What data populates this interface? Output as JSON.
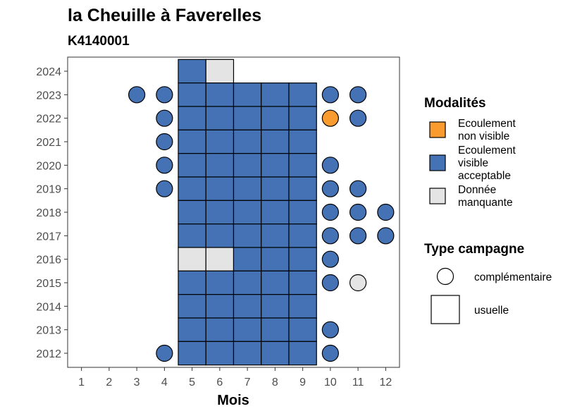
{
  "chart_data": {
    "type": "heatmap",
    "title": "la Cheuille à Faverelles",
    "subtitle": "K4140001",
    "xlabel": "Mois",
    "ylabel": "",
    "x_ticks": [
      1,
      2,
      3,
      4,
      5,
      6,
      7,
      8,
      9,
      10,
      11,
      12
    ],
    "y_ticks": [
      2012,
      2013,
      2014,
      2015,
      2016,
      2017,
      2018,
      2019,
      2020,
      2021,
      2022,
      2023,
      2024
    ],
    "xlim": [
      0.5,
      12.5
    ],
    "ylim": [
      2011.4,
      2024.6
    ],
    "grid": false,
    "legend_placement": "right",
    "modalites_legend": {
      "title": "Modalités",
      "items": [
        {
          "key": "ENV",
          "lines": [
            "Ecoulement",
            "non visible"
          ],
          "color": "#F99B2F"
        },
        {
          "key": "EVA",
          "lines": [
            "Ecoulement",
            "visible",
            "acceptable"
          ],
          "color": "#4472B4"
        },
        {
          "key": "NA",
          "lines": [
            "Donnée",
            "manquante"
          ],
          "color": "#E4E4E4"
        }
      ]
    },
    "campagne_legend": {
      "title": "Type campagne",
      "items": [
        {
          "key": "comp",
          "label": "complémentaire",
          "shape": "circle"
        },
        {
          "key": "usu",
          "label": "usuelle",
          "shape": "square"
        }
      ]
    },
    "usuelle": [
      {
        "year": 2024,
        "months": [
          5
        ],
        "modalite": "EVA"
      },
      {
        "year": 2024,
        "months": [
          6
        ],
        "modalite": "NA"
      },
      {
        "year": 2023,
        "months": [
          5,
          6,
          7,
          8,
          9
        ],
        "modalite": "EVA"
      },
      {
        "year": 2022,
        "months": [
          5,
          6,
          7,
          8,
          9
        ],
        "modalite": "EVA"
      },
      {
        "year": 2021,
        "months": [
          5,
          6,
          7,
          8,
          9
        ],
        "modalite": "EVA"
      },
      {
        "year": 2020,
        "months": [
          5,
          6,
          7,
          8,
          9
        ],
        "modalite": "EVA"
      },
      {
        "year": 2019,
        "months": [
          5,
          6,
          7,
          8,
          9
        ],
        "modalite": "EVA"
      },
      {
        "year": 2018,
        "months": [
          5,
          6,
          7,
          8,
          9
        ],
        "modalite": "EVA"
      },
      {
        "year": 2017,
        "months": [
          5,
          6,
          7,
          8,
          9
        ],
        "modalite": "EVA"
      },
      {
        "year": 2016,
        "months": [
          5,
          6
        ],
        "modalite": "NA"
      },
      {
        "year": 2016,
        "months": [
          7,
          8,
          9
        ],
        "modalite": "EVA"
      },
      {
        "year": 2015,
        "months": [
          5,
          6,
          7,
          8,
          9
        ],
        "modalite": "EVA"
      },
      {
        "year": 2014,
        "months": [
          5,
          6,
          7,
          8,
          9
        ],
        "modalite": "EVA"
      },
      {
        "year": 2013,
        "months": [
          5,
          6,
          7,
          8,
          9
        ],
        "modalite": "EVA"
      },
      {
        "year": 2012,
        "months": [
          5,
          6,
          7,
          8,
          9
        ],
        "modalite": "EVA"
      }
    ],
    "complementaire": [
      {
        "year": 2023,
        "months": [
          3,
          4,
          10,
          11
        ],
        "modalite": "EVA"
      },
      {
        "year": 2022,
        "months": [
          4,
          11
        ],
        "modalite": "EVA"
      },
      {
        "year": 2022,
        "months": [
          10
        ],
        "modalite": "ENV"
      },
      {
        "year": 2021,
        "months": [
          4
        ],
        "modalite": "EVA"
      },
      {
        "year": 2020,
        "months": [
          4,
          10
        ],
        "modalite": "EVA"
      },
      {
        "year": 2019,
        "months": [
          4,
          10,
          11
        ],
        "modalite": "EVA"
      },
      {
        "year": 2018,
        "months": [
          10,
          11,
          12
        ],
        "modalite": "EVA"
      },
      {
        "year": 2017,
        "months": [
          10,
          11,
          12
        ],
        "modalite": "EVA"
      },
      {
        "year": 2016,
        "months": [
          10
        ],
        "modalite": "EVA"
      },
      {
        "year": 2015,
        "months": [
          10
        ],
        "modalite": "EVA"
      },
      {
        "year": 2015,
        "months": [
          11
        ],
        "modalite": "NA"
      },
      {
        "year": 2013,
        "months": [
          10
        ],
        "modalite": "EVA"
      },
      {
        "year": 2012,
        "months": [
          4,
          10
        ],
        "modalite": "EVA"
      }
    ]
  }
}
